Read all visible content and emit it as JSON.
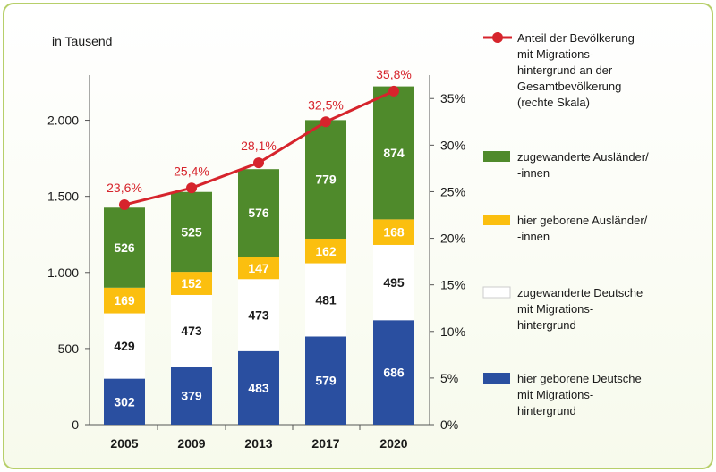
{
  "chart_data": {
    "type": "bar",
    "stacked": true,
    "unit_label": "in Tausend",
    "categories": [
      "2005",
      "2009",
      "2013",
      "2017",
      "2020"
    ],
    "left_axis": {
      "ylim": [
        0,
        2250
      ],
      "ticks": [
        "0",
        "500",
        "1.000",
        "1.500",
        "2.000"
      ],
      "tick_values": [
        0,
        500,
        1000,
        1500,
        2000
      ]
    },
    "right_axis": {
      "ylim": [
        0,
        36.75
      ],
      "ticks": [
        "0%",
        "5%",
        "10%",
        "15%",
        "20%",
        "25%",
        "30%",
        "35%"
      ],
      "tick_values": [
        0,
        5,
        10,
        15,
        20,
        25,
        30,
        35
      ]
    },
    "series": [
      {
        "name": "hier geborene Deutsche mit Migrations-hintergrund",
        "legend_lines": [
          "hier geborene Deutsche",
          "mit Migrations-",
          "hintergrund"
        ],
        "color": "#2a4fa0",
        "label_color": "#ffffff",
        "values": [
          302,
          379,
          483,
          579,
          686
        ]
      },
      {
        "name": "zugewanderte Deutsche mit Migrations-hintergrund",
        "legend_lines": [
          "zugewanderte Deutsche",
          "mit Migrations-",
          "hintergrund"
        ],
        "color": "#ffffff",
        "label_color": "#1a1a1a",
        "values": [
          429,
          473,
          473,
          481,
          495
        ]
      },
      {
        "name": "hier geborene Ausländer/-innen",
        "legend_lines": [
          "hier geborene Ausländer/",
          "-innen"
        ],
        "color": "#fbbf0f",
        "label_color": "#ffffff",
        "values": [
          169,
          152,
          147,
          162,
          168
        ]
      },
      {
        "name": "zugewanderte Ausländer/-innen",
        "legend_lines": [
          "zugewanderte Ausländer/",
          "-innen"
        ],
        "color": "#4f8a2b",
        "label_color": "#ffffff",
        "values": [
          526,
          525,
          576,
          779,
          874
        ]
      }
    ],
    "line": {
      "name": "Anteil der Bevölkerung mit Migrations-hintergrund an der Gesamtbevölkerung (rechte Skala)",
      "legend_lines": [
        "Anteil der Bevölkerung",
        "mit Migrations-",
        "hintergrund an der",
        "Gesamtbevölkerung",
        "(rechte Skala)"
      ],
      "color": "#d6242c",
      "values": [
        23.6,
        25.4,
        28.1,
        32.5,
        35.8
      ],
      "labels": [
        "23,6%",
        "25,4%",
        "28,1%",
        "32,5%",
        "35,8%"
      ],
      "axis": "right"
    },
    "legend_position": "right",
    "grid": false
  }
}
